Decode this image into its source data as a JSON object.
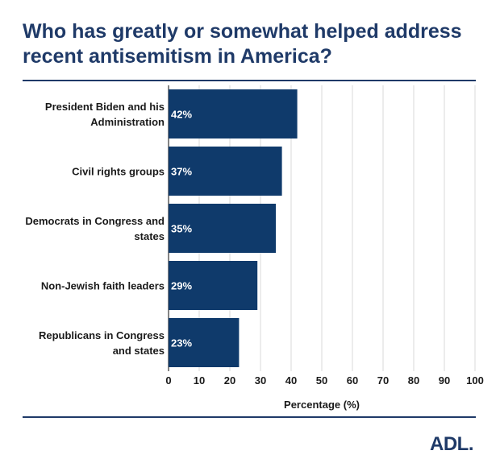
{
  "header": {
    "title_line1": "Who has greatly or somewhat helped address",
    "title_line2": "recent antisemitism in America?"
  },
  "logo": {
    "text": "ADL",
    "dot": "."
  },
  "colors": {
    "bar": "#0f3a6b",
    "accent": "#1f3a68",
    "grid": "#d9d9d9"
  },
  "chart_data": {
    "type": "bar",
    "orientation": "horizontal",
    "categories": [
      [
        "President Biden and his",
        "Administration"
      ],
      [
        "Civil rights groups"
      ],
      [
        "Democrats in Congress and",
        "states"
      ],
      [
        "Non-Jewish faith leaders"
      ],
      [
        "Republicans in Congress",
        "and states"
      ]
    ],
    "values": [
      42,
      37,
      35,
      29,
      23
    ],
    "value_labels": [
      "42%",
      "37%",
      "35%",
      "29%",
      "23%"
    ],
    "xlabel": "Percentage (%)",
    "ylabel": "",
    "xlim": [
      0,
      100
    ],
    "xticks": [
      0,
      10,
      20,
      30,
      40,
      50,
      60,
      70,
      80,
      90,
      100
    ],
    "grid": true
  }
}
